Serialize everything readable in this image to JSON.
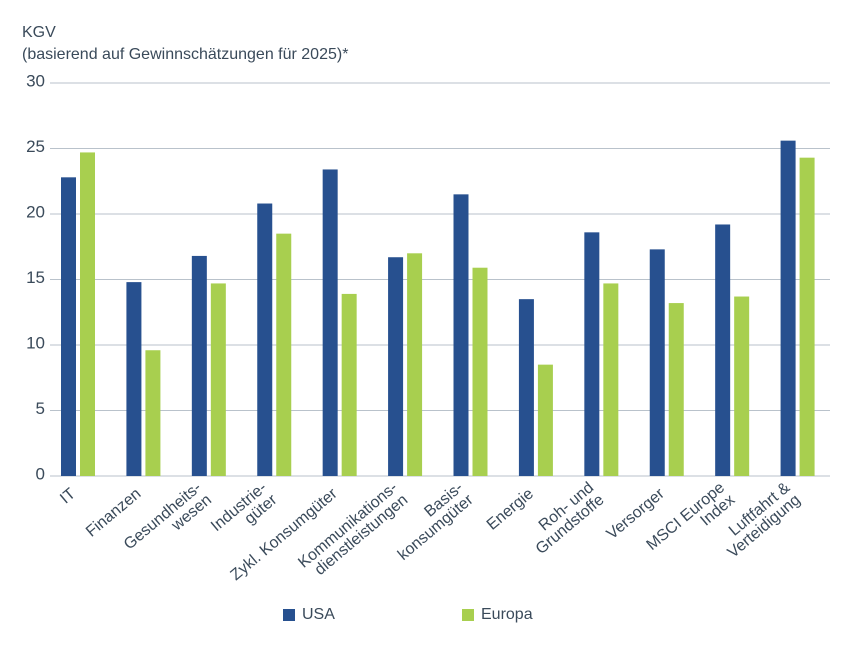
{
  "chart_data": {
    "type": "bar",
    "title": "KGV",
    "subtitle": "(basierend auf Gewinnschätzungen für 2025)*",
    "categories": [
      [
        "IT"
      ],
      [
        "Finanzen"
      ],
      [
        "Gesundheits-",
        "wesen"
      ],
      [
        "Industrie-",
        "güter"
      ],
      [
        "Zykl. Konsumgüter"
      ],
      [
        "Kommunikations-",
        "dienstleistungen"
      ],
      [
        "Basis-",
        "konsumgüter"
      ],
      [
        "Energie"
      ],
      [
        "Roh- und",
        "Grundstoffe"
      ],
      [
        "Versorger"
      ],
      [
        "MSCI Europe",
        "Index"
      ],
      [
        "Luftfahrt &",
        "Verteidigung"
      ]
    ],
    "series": [
      {
        "name": "USA",
        "color": "#27508f",
        "values": [
          22.8,
          14.8,
          16.8,
          20.8,
          23.4,
          16.7,
          21.5,
          13.5,
          18.6,
          17.3,
          19.2,
          25.6
        ]
      },
      {
        "name": "Europa",
        "color": "#a8cf4f",
        "values": [
          24.7,
          9.6,
          14.7,
          18.5,
          13.9,
          17.0,
          15.9,
          8.5,
          14.7,
          13.2,
          13.7,
          24.3
        ]
      }
    ],
    "ylim": [
      0,
      30
    ],
    "yticks": [
      0,
      5,
      10,
      15,
      20,
      25,
      30
    ],
    "grid": true
  }
}
